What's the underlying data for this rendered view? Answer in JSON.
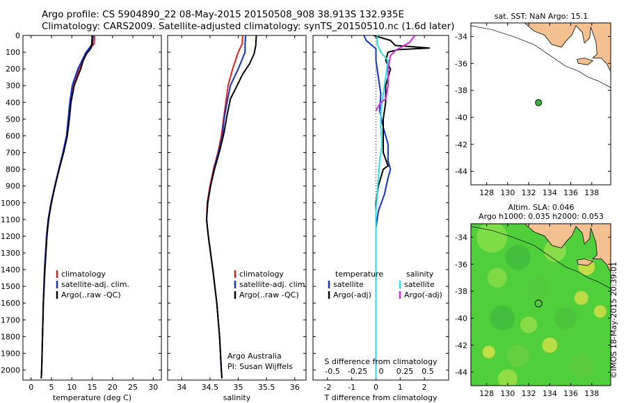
{
  "header": {
    "line1": "Argo profile: CS 5904890_22 08-May-2015 20150508_908 38.913S 132.935E",
    "line2": "Climatology: CARS2009. Satellite-adjusted climatology: synTS_20150510.nc (1.6d later)"
  },
  "stamp": "©IMOS 18-May-2015 20:39:01",
  "colors": {
    "climatology": "#e02020",
    "satellite": "#1030d0",
    "argo": "#000000",
    "sat_s": "#20e0e0",
    "argo_s": "#e020e0",
    "land": "#f5c08f",
    "sea_green": "#4fd03a"
  },
  "chart_data": [
    {
      "type": "line",
      "name": "temperature",
      "xlabel": "temperature (deg C)",
      "xlim": [
        -2,
        32
      ],
      "ylim": [
        2060,
        0
      ],
      "xticks": [
        0,
        5,
        10,
        15,
        20,
        25,
        30
      ],
      "yticks": [
        0,
        100,
        200,
        300,
        400,
        500,
        600,
        700,
        800,
        900,
        1000,
        1100,
        1200,
        1300,
        1400,
        1500,
        1600,
        1700,
        1800,
        1900,
        2000
      ],
      "legend": [
        "climatology",
        "satellite-adj. clim.",
        "Argo(..raw -QC)"
      ],
      "series": [
        {
          "name": "climatology",
          "color": "#e02020",
          "y": [
            0,
            50,
            100,
            200,
            300,
            400,
            500,
            600,
            700,
            800,
            900,
            1000,
            1100,
            1200,
            1400,
            1600,
            1800,
            2000,
            2050
          ],
          "x": [
            15.6,
            15.5,
            13.8,
            11.8,
            10.3,
            9.6,
            9.2,
            8.8,
            7.9,
            6.8,
            5.8,
            4.9,
            4.2,
            3.8,
            3.3,
            3.0,
            2.8,
            2.6,
            2.5
          ]
        },
        {
          "name": "satellite-adj. clim.",
          "color": "#1030d0",
          "y": [
            0,
            50,
            100,
            200,
            300,
            400,
            500,
            600,
            700,
            800,
            900,
            1000,
            1100,
            1200,
            1400,
            1600,
            1800,
            2000,
            2050
          ],
          "x": [
            15.2,
            15.1,
            13.5,
            11.5,
            10.1,
            9.5,
            9.1,
            8.7,
            7.8,
            6.8,
            5.8,
            4.9,
            4.2,
            3.8,
            3.3,
            3.0,
            2.8,
            2.6,
            2.5
          ]
        },
        {
          "name": "Argo(..raw -QC)",
          "color": "#000000",
          "y": [
            0,
            50,
            80,
            110,
            150,
            200,
            260,
            300,
            400,
            500,
            600,
            700,
            800,
            900,
            1000,
            1100,
            1200,
            1400,
            1600,
            1800,
            2000,
            2050
          ],
          "x": [
            15.0,
            14.9,
            14.6,
            13.6,
            12.8,
            12.2,
            11.2,
            10.6,
            9.8,
            9.4,
            8.9,
            8.0,
            6.9,
            5.9,
            5.0,
            4.3,
            3.9,
            3.4,
            3.0,
            2.8,
            2.6,
            2.5
          ]
        }
      ]
    },
    {
      "type": "line",
      "name": "salinity",
      "xlabel": "salinity",
      "xlim": [
        33.75,
        36.2
      ],
      "ylim": [
        2060,
        0
      ],
      "xticks": [
        34,
        34.5,
        35,
        35.5,
        36
      ],
      "legend": [
        "climatology",
        "satellite-adj. clim.",
        "Argo(..raw -QC)"
      ],
      "annotation": [
        "Argo Australia",
        "PI: Susan Wijffels"
      ],
      "series": [
        {
          "name": "climatology",
          "color": "#e02020",
          "y": [
            0,
            50,
            100,
            200,
            300,
            400,
            500,
            600,
            700,
            800,
            900,
            1000,
            1100,
            1200,
            1400,
            1600,
            1800,
            2000,
            2050
          ],
          "x": [
            35.08,
            35.07,
            35.0,
            34.9,
            34.82,
            34.78,
            34.74,
            34.7,
            34.64,
            34.56,
            34.5,
            34.45,
            34.44,
            34.47,
            34.55,
            34.62,
            34.67,
            34.7,
            34.71
          ]
        },
        {
          "name": "satellite-adj. clim.",
          "color": "#1030d0",
          "y": [
            0,
            50,
            100,
            200,
            300,
            400,
            500,
            600,
            700,
            800,
            900,
            1000,
            1100,
            1200,
            1400,
            1600,
            1800,
            2000,
            2050
          ],
          "x": [
            35.13,
            35.12,
            35.12,
            35.0,
            34.86,
            34.8,
            34.75,
            34.72,
            34.65,
            34.57,
            34.51,
            34.46,
            34.44,
            34.47,
            34.55,
            34.62,
            34.67,
            34.7,
            34.71
          ]
        },
        {
          "name": "Argo(..raw -QC)",
          "color": "#000000",
          "y": [
            0,
            60,
            110,
            170,
            230,
            300,
            380,
            480,
            580,
            680,
            800,
            900,
            1000,
            1100,
            1200,
            1400,
            1600,
            1800,
            2000,
            2050
          ],
          "x": [
            35.32,
            35.31,
            35.28,
            35.2,
            35.08,
            34.98,
            34.86,
            34.8,
            34.75,
            34.68,
            34.58,
            34.51,
            34.46,
            34.44,
            34.47,
            34.55,
            34.62,
            34.67,
            34.7,
            34.71
          ]
        }
      ]
    },
    {
      "type": "line",
      "name": "differences",
      "xlabel": "T difference from climatology",
      "xlabel_top": "S difference from climatology",
      "xlim": [
        -2.6,
        3.0
      ],
      "ylim": [
        2060,
        0
      ],
      "xticks": [
        -2,
        -1,
        0,
        1,
        2
      ],
      "xticks_top": [
        -0.5,
        -0.25,
        0,
        0.25,
        0.5
      ],
      "legend_left": {
        "title": "temperature",
        "items": [
          "satellite",
          "Argo(-adj)"
        ]
      },
      "legend_right": {
        "title": "salinity",
        "items": [
          "satellite",
          "Argo(-adj)"
        ]
      },
      "series": [
        {
          "name": "temperature satellite",
          "color": "#1030d0",
          "y": [
            0,
            30,
            80,
            150,
            250,
            350,
            450,
            550,
            650,
            750,
            800,
            850,
            950,
            1050,
            1150,
            1300,
            1500,
            1800,
            2050
          ],
          "x": [
            -0.5,
            -0.4,
            0.0,
            0.0,
            0.1,
            0.2,
            0.15,
            0.3,
            0.5,
            0.5,
            0.6,
            0.5,
            0.35,
            0.1,
            0.0,
            0.0,
            0.0,
            0.0,
            0.0
          ]
        },
        {
          "name": "temperature Argo(-adj)",
          "color": "#000000",
          "y": [
            0,
            30,
            60,
            75,
            85,
            100,
            150,
            200,
            300,
            400,
            500,
            600,
            700,
            780,
            800,
            900,
            1000,
            1100,
            1200,
            1400,
            1700,
            2050
          ],
          "x": [
            -0.1,
            0.6,
            0.8,
            2.2,
            0.9,
            0.5,
            0.4,
            0.6,
            0.4,
            0.4,
            0.3,
            0.3,
            0.3,
            0.5,
            0.3,
            0.1,
            0.0,
            0.0,
            0.0,
            0.0,
            0.0,
            0.0
          ]
        },
        {
          "name": "salinity satellite",
          "color": "#20e0e0",
          "y": [
            0,
            50,
            100,
            150,
            250,
            350,
            450,
            550,
            650,
            750,
            850,
            950,
            1050,
            1100,
            1300,
            1600,
            2050
          ],
          "x": [
            0.05,
            0.05,
            0.2,
            0.5,
            0.4,
            0.3,
            0.2,
            0.2,
            0.25,
            0.15,
            0.1,
            0.05,
            0.0,
            0.0,
            0.0,
            0.0,
            0.0
          ]
        },
        {
          "name": "salinity Argo(-adj)",
          "color": "#e020e0",
          "y": [
            0,
            40,
            90,
            120,
            200,
            300,
            380,
            400,
            450
          ],
          "x": [
            1.6,
            1.4,
            0.8,
            0.6,
            0.5,
            0.5,
            0.4,
            0.2,
            0.0
          ]
        }
      ]
    }
  ],
  "map1": {
    "title": "sat. SST: NaN Argo: 15.1",
    "xlim": [
      126.5,
      139.8
    ],
    "ylim": [
      -45,
      -33
    ],
    "xticks": [
      128,
      130,
      132,
      134,
      136,
      138
    ],
    "yticks": [
      -34,
      -36,
      -38,
      -40,
      -42,
      -44
    ],
    "point": {
      "lon": 132.935,
      "lat": -38.913
    }
  },
  "map2": {
    "title_line1": "Altim. SLA: 0.046",
    "title_line2": "Argo h1000: 0.035 h2000: 0.053",
    "xlim": [
      126.5,
      139.8
    ],
    "ylim": [
      -45,
      -33
    ],
    "xticks": [
      128,
      130,
      132,
      134,
      136,
      138
    ],
    "yticks": [
      -34,
      -36,
      -38,
      -40,
      -42,
      -44
    ],
    "point": {
      "lon": 132.935,
      "lat": -38.913
    }
  }
}
